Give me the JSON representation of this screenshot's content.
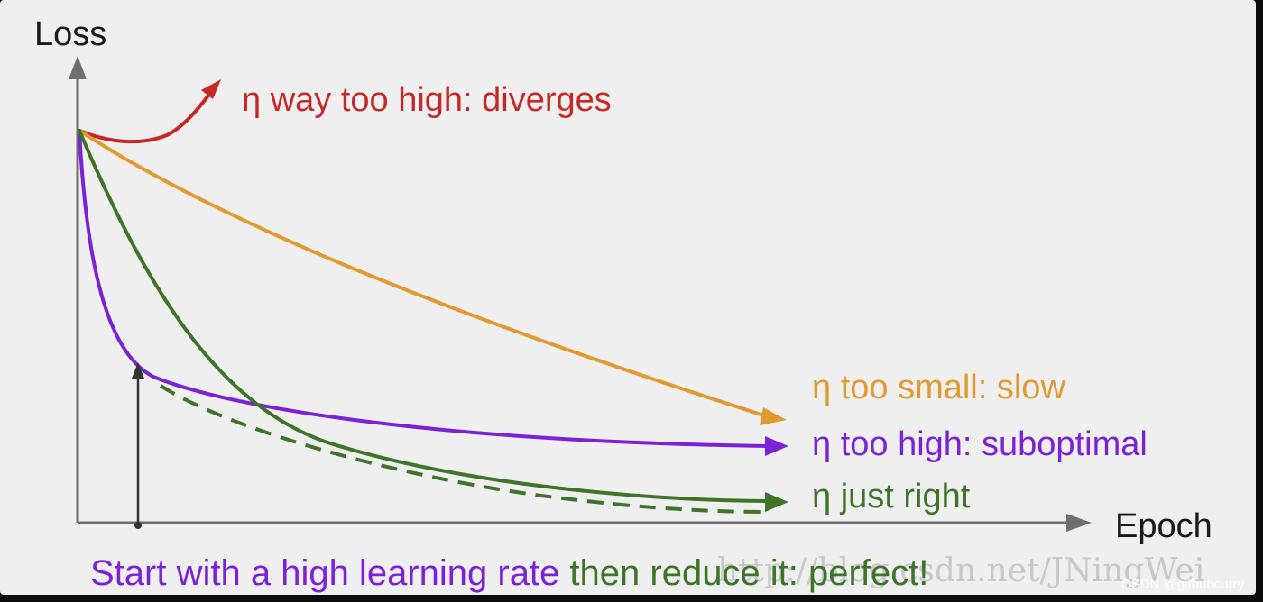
{
  "axes": {
    "y_label": "Loss",
    "x_label": "Epoch"
  },
  "curves": [
    {
      "id": "diverges",
      "label": "η way too high: diverges",
      "color": "#c62828"
    },
    {
      "id": "slow",
      "label": "η too small: slow",
      "color": "#e09a2f"
    },
    {
      "id": "suboptimal",
      "label": "η too high: suboptimal",
      "color": "#7b22d6"
    },
    {
      "id": "just_right",
      "label": "η just right",
      "color": "#3d7428"
    }
  ],
  "caption": {
    "part1": "Start with a high learning rate",
    "part1_color": "#7b22d6",
    "part2": " then reduce it: perfect!",
    "part2_color": "#3d7428"
  },
  "watermark": "http://blog.csdn.net/JNingWei",
  "credit": "CSDN @githubcurry"
}
